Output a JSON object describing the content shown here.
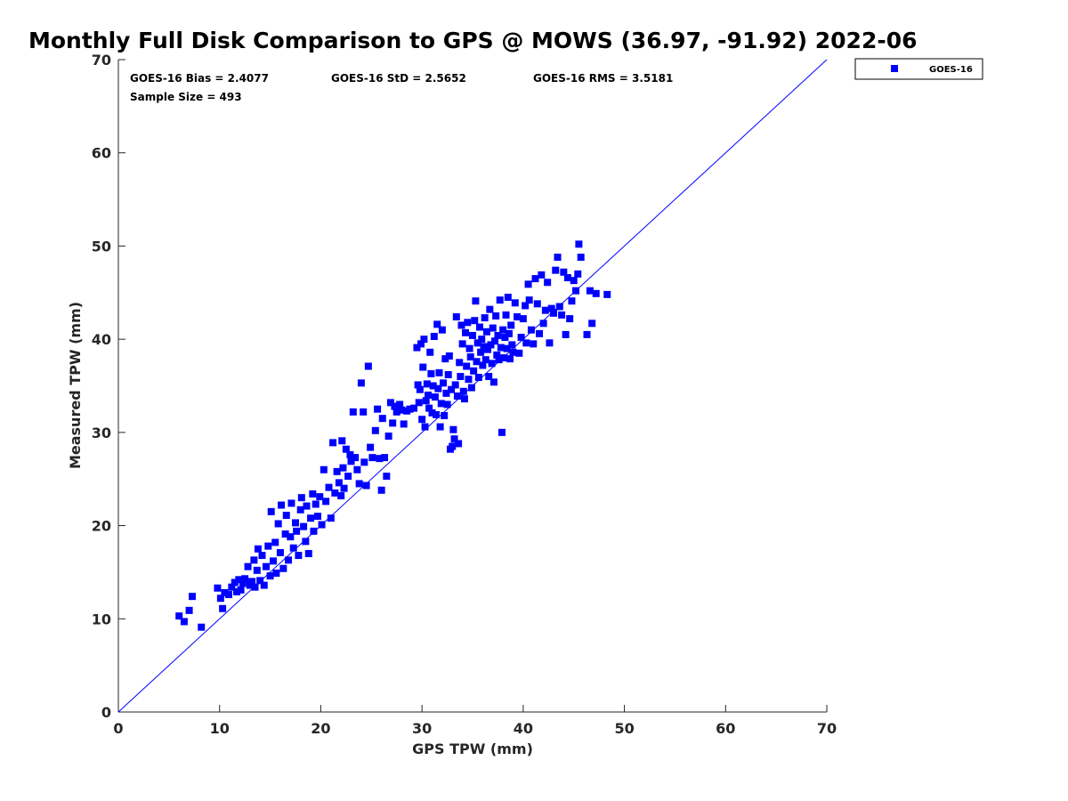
{
  "chart_data": {
    "type": "scatter",
    "title": "Monthly Full Disk Comparison to GPS @ MOWS (36.97, -91.92) 2022-06",
    "xlabel": "GPS TPW (mm)",
    "ylabel": "Measured TPW (mm)",
    "xlim": [
      0,
      70
    ],
    "ylim": [
      0,
      70
    ],
    "xticks": [
      "0",
      "10",
      "20",
      "30",
      "40",
      "50",
      "60",
      "70"
    ],
    "yticks": [
      "0",
      "10",
      "20",
      "30",
      "40",
      "50",
      "60",
      "70"
    ],
    "grid": false,
    "legend_position": "outside-top-right",
    "reference_line": {
      "x": [
        0,
        70
      ],
      "y": [
        0,
        70
      ],
      "color": "#0000ff"
    },
    "stats": {
      "bias": "GOES-16 Bias = 2.4077",
      "std": "GOES-16 StD = 2.5652",
      "rms": "GOES-16 RMS = 3.5181",
      "sample": "Sample Size = 493"
    },
    "series": [
      {
        "name": "GOES-16",
        "color": "#0000ff",
        "marker": "square",
        "points": [
          [
            6.0,
            10.3
          ],
          [
            6.5,
            9.7
          ],
          [
            7.0,
            10.9
          ],
          [
            7.3,
            12.4
          ],
          [
            8.2,
            9.1
          ],
          [
            9.8,
            13.3
          ],
          [
            10.1,
            12.2
          ],
          [
            10.3,
            11.1
          ],
          [
            10.5,
            12.8
          ],
          [
            10.9,
            12.6
          ],
          [
            11.2,
            13.4
          ],
          [
            11.5,
            13.9
          ],
          [
            11.7,
            12.9
          ],
          [
            11.9,
            14.2
          ],
          [
            12.1,
            13.1
          ],
          [
            12.3,
            13.8
          ],
          [
            12.5,
            14.3
          ],
          [
            12.8,
            15.6
          ],
          [
            13.0,
            13.6
          ],
          [
            13.2,
            14.0
          ],
          [
            13.4,
            16.3
          ],
          [
            13.5,
            13.4
          ],
          [
            13.7,
            15.2
          ],
          [
            13.8,
            17.5
          ],
          [
            14.0,
            14.1
          ],
          [
            14.2,
            16.8
          ],
          [
            14.4,
            13.6
          ],
          [
            14.6,
            15.6
          ],
          [
            14.8,
            17.8
          ],
          [
            15.0,
            14.6
          ],
          [
            15.1,
            21.5
          ],
          [
            15.3,
            16.2
          ],
          [
            15.5,
            18.2
          ],
          [
            15.6,
            14.9
          ],
          [
            15.8,
            20.2
          ],
          [
            16.0,
            17.1
          ],
          [
            16.1,
            22.2
          ],
          [
            16.3,
            15.4
          ],
          [
            16.5,
            19.1
          ],
          [
            16.6,
            21.1
          ],
          [
            16.8,
            16.3
          ],
          [
            17.0,
            18.8
          ],
          [
            17.1,
            22.4
          ],
          [
            17.3,
            17.6
          ],
          [
            17.5,
            20.3
          ],
          [
            17.6,
            19.4
          ],
          [
            17.8,
            16.8
          ],
          [
            18.0,
            21.7
          ],
          [
            18.1,
            23.0
          ],
          [
            18.3,
            19.9
          ],
          [
            18.5,
            18.3
          ],
          [
            18.6,
            22.1
          ],
          [
            18.8,
            17.0
          ],
          [
            19.0,
            20.8
          ],
          [
            19.2,
            23.4
          ],
          [
            19.3,
            19.4
          ],
          [
            19.5,
            22.3
          ],
          [
            19.7,
            21.0
          ],
          [
            19.9,
            23.1
          ],
          [
            20.1,
            20.1
          ],
          [
            20.3,
            26.0
          ],
          [
            20.5,
            22.6
          ],
          [
            20.8,
            24.1
          ],
          [
            21.0,
            20.8
          ],
          [
            21.2,
            28.9
          ],
          [
            21.4,
            23.5
          ],
          [
            21.6,
            25.8
          ],
          [
            21.8,
            24.6
          ],
          [
            22.0,
            23.2
          ],
          [
            22.1,
            29.1
          ],
          [
            22.2,
            26.2
          ],
          [
            22.3,
            24.0
          ],
          [
            22.5,
            28.2
          ],
          [
            22.7,
            25.3
          ],
          [
            22.9,
            27.6
          ],
          [
            23.0,
            26.9
          ],
          [
            23.2,
            32.2
          ],
          [
            23.4,
            27.3
          ],
          [
            23.6,
            26.0
          ],
          [
            23.8,
            24.5
          ],
          [
            24.0,
            35.3
          ],
          [
            24.2,
            32.2
          ],
          [
            24.3,
            26.8
          ],
          [
            24.5,
            24.3
          ],
          [
            24.7,
            37.1
          ],
          [
            24.9,
            28.4
          ],
          [
            25.1,
            27.3
          ],
          [
            25.4,
            30.2
          ],
          [
            25.6,
            32.5
          ],
          [
            25.8,
            27.2
          ],
          [
            26.0,
            23.8
          ],
          [
            26.1,
            31.5
          ],
          [
            26.3,
            27.3
          ],
          [
            26.5,
            25.3
          ],
          [
            26.7,
            29.6
          ],
          [
            26.9,
            33.2
          ],
          [
            27.1,
            31.0
          ],
          [
            27.3,
            32.8
          ],
          [
            27.5,
            32.2
          ],
          [
            27.8,
            33.0
          ],
          [
            28.0,
            32.4
          ],
          [
            28.2,
            30.9
          ],
          [
            28.5,
            32.3
          ],
          [
            28.8,
            32.5
          ],
          [
            29.2,
            32.6
          ],
          [
            29.5,
            39.1
          ],
          [
            29.6,
            35.1
          ],
          [
            29.7,
            33.2
          ],
          [
            29.8,
            34.6
          ],
          [
            29.9,
            39.5
          ],
          [
            30.0,
            31.4
          ],
          [
            30.1,
            37.0
          ],
          [
            30.2,
            40.0
          ],
          [
            30.3,
            30.6
          ],
          [
            30.4,
            33.4
          ],
          [
            30.5,
            35.2
          ],
          [
            30.6,
            34.0
          ],
          [
            30.7,
            32.6
          ],
          [
            30.8,
            38.6
          ],
          [
            30.9,
            36.3
          ],
          [
            31.0,
            32.1
          ],
          [
            31.1,
            35.0
          ],
          [
            31.2,
            40.3
          ],
          [
            31.3,
            33.8
          ],
          [
            31.4,
            31.9
          ],
          [
            31.5,
            41.6
          ],
          [
            31.6,
            34.7
          ],
          [
            31.7,
            36.4
          ],
          [
            31.8,
            30.6
          ],
          [
            31.9,
            33.1
          ],
          [
            32.0,
            41.0
          ],
          [
            32.1,
            35.3
          ],
          [
            32.2,
            31.8
          ],
          [
            32.3,
            37.9
          ],
          [
            32.4,
            34.2
          ],
          [
            32.5,
            33.0
          ],
          [
            32.6,
            36.2
          ],
          [
            32.7,
            38.2
          ],
          [
            32.8,
            28.2
          ],
          [
            32.9,
            34.6
          ],
          [
            33.0,
            28.5
          ],
          [
            33.1,
            30.3
          ],
          [
            33.2,
            29.3
          ],
          [
            33.3,
            35.1
          ],
          [
            33.4,
            42.4
          ],
          [
            33.5,
            33.9
          ],
          [
            33.6,
            28.8
          ],
          [
            33.7,
            37.5
          ],
          [
            33.8,
            36.0
          ],
          [
            33.9,
            41.5
          ],
          [
            34.0,
            39.5
          ],
          [
            34.1,
            34.4
          ],
          [
            34.2,
            33.6
          ],
          [
            34.3,
            40.7
          ],
          [
            34.4,
            37.1
          ],
          [
            34.5,
            41.8
          ],
          [
            34.6,
            35.7
          ],
          [
            34.7,
            39.0
          ],
          [
            34.8,
            38.1
          ],
          [
            34.9,
            34.8
          ],
          [
            35.0,
            40.4
          ],
          [
            35.1,
            36.6
          ],
          [
            35.2,
            42.0
          ],
          [
            35.3,
            44.1
          ],
          [
            35.4,
            37.6
          ],
          [
            35.5,
            39.6
          ],
          [
            35.6,
            35.9
          ],
          [
            35.7,
            41.3
          ],
          [
            35.8,
            38.6
          ],
          [
            35.9,
            40.0
          ],
          [
            36.0,
            37.2
          ],
          [
            36.1,
            39.2
          ],
          [
            36.2,
            42.3
          ],
          [
            36.3,
            37.8
          ],
          [
            36.4,
            40.8
          ],
          [
            36.5,
            38.9
          ],
          [
            36.6,
            36.0
          ],
          [
            36.7,
            43.2
          ],
          [
            36.8,
            39.4
          ],
          [
            36.9,
            37.4
          ],
          [
            37.0,
            41.2
          ],
          [
            37.1,
            35.4
          ],
          [
            37.2,
            39.8
          ],
          [
            37.3,
            42.5
          ],
          [
            37.4,
            38.3
          ],
          [
            37.5,
            40.4
          ],
          [
            37.6,
            37.8
          ],
          [
            37.7,
            44.2
          ],
          [
            37.8,
            39.1
          ],
          [
            37.9,
            30.0
          ],
          [
            38.0,
            41.0
          ],
          [
            38.1,
            38.0
          ],
          [
            38.2,
            40.2
          ],
          [
            38.3,
            42.6
          ],
          [
            38.4,
            39.0
          ],
          [
            38.5,
            44.5
          ],
          [
            38.6,
            40.6
          ],
          [
            38.7,
            37.9
          ],
          [
            38.8,
            41.5
          ],
          [
            38.9,
            39.4
          ],
          [
            39.0,
            38.6
          ],
          [
            39.2,
            43.9
          ],
          [
            39.4,
            42.4
          ],
          [
            39.6,
            38.5
          ],
          [
            39.8,
            40.2
          ],
          [
            40.0,
            42.2
          ],
          [
            40.2,
            43.6
          ],
          [
            40.3,
            39.6
          ],
          [
            40.5,
            45.9
          ],
          [
            40.6,
            44.2
          ],
          [
            40.8,
            41.0
          ],
          [
            41.0,
            39.5
          ],
          [
            41.2,
            46.5
          ],
          [
            41.4,
            43.8
          ],
          [
            41.6,
            40.6
          ],
          [
            41.8,
            46.9
          ],
          [
            42.0,
            41.7
          ],
          [
            42.2,
            43.1
          ],
          [
            42.4,
            46.1
          ],
          [
            42.6,
            39.6
          ],
          [
            42.8,
            43.3
          ],
          [
            43.0,
            42.8
          ],
          [
            43.2,
            47.4
          ],
          [
            43.4,
            48.8
          ],
          [
            43.6,
            43.5
          ],
          [
            43.8,
            42.6
          ],
          [
            44.0,
            47.2
          ],
          [
            44.2,
            40.5
          ],
          [
            44.4,
            46.6
          ],
          [
            44.6,
            42.2
          ],
          [
            44.8,
            44.1
          ],
          [
            45.0,
            46.3
          ],
          [
            45.2,
            45.2
          ],
          [
            45.4,
            47.0
          ],
          [
            45.5,
            50.2
          ],
          [
            45.7,
            48.8
          ],
          [
            46.3,
            40.5
          ],
          [
            46.6,
            45.2
          ],
          [
            46.8,
            41.7
          ],
          [
            47.2,
            44.9
          ],
          [
            48.3,
            44.8
          ]
        ]
      }
    ]
  }
}
